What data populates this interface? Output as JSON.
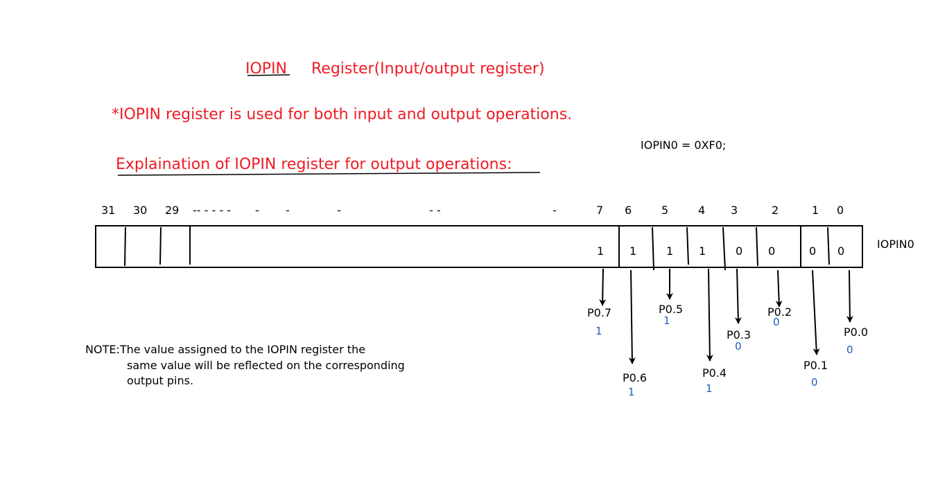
{
  "title": {
    "register_name": "IOPIN",
    "register_desc": "Register(Input/output register)"
  },
  "description": "*IOPIN register is used for both input and output operations.",
  "subtitle": "Explaination of IOPIN register for output operations:",
  "assignment": "IOPIN0 = 0XF0;",
  "register_label": "IOPIN0",
  "bit_numbers": [
    "31",
    "30",
    "29",
    "-- - - - -",
    "-",
    "-",
    "-",
    "- -",
    "-",
    "7",
    "6",
    "5",
    "4",
    "3",
    "2",
    "1",
    "0"
  ],
  "cell_values": [
    "1",
    "1",
    "1",
    "1",
    "0",
    "0",
    "0",
    "0"
  ],
  "pins": [
    {
      "name": "P0.7",
      "value": "1"
    },
    {
      "name": "P0.6",
      "value": "1"
    },
    {
      "name": "P0.5",
      "value": "1"
    },
    {
      "name": "P0.4",
      "value": "1"
    },
    {
      "name": "P0.3",
      "value": "0"
    },
    {
      "name": "P0.2",
      "value": "0"
    },
    {
      "name": "P0.1",
      "value": "0"
    },
    {
      "name": "P0.0",
      "value": "0"
    }
  ],
  "note": {
    "line1": "NOTE:The value assigned to the IOPIN register the",
    "line2": "same value will be reflected on the corresponding",
    "line3": "output pins."
  },
  "colors": {
    "red": "#ee1c24",
    "blue": "#1f5bb8",
    "black": "#000000"
  }
}
